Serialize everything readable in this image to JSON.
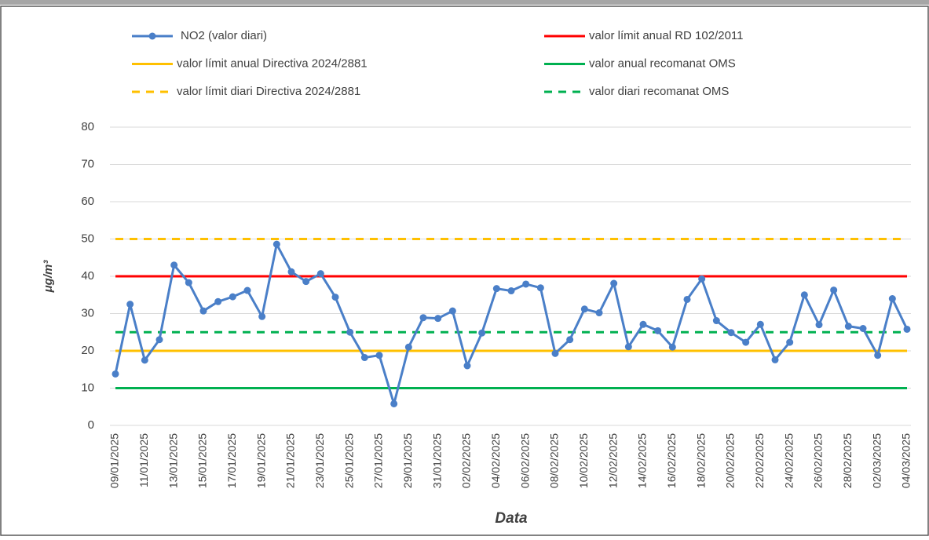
{
  "chart_data": {
    "type": "line",
    "y_label": "μg/m³",
    "x_label": "Data",
    "categories": [
      "09/01/2025",
      null,
      "11/01/2025",
      null,
      "13/01/2025",
      null,
      "15/01/2025",
      null,
      "17/01/2025",
      null,
      "19/01/2025",
      null,
      "21/01/2025",
      null,
      "23/01/2025",
      null,
      "25/01/2025",
      null,
      "27/01/2025",
      null,
      "29/01/2025",
      null,
      "31/01/2025",
      null,
      "02/02/2025",
      null,
      "04/02/2025",
      null,
      "06/02/2025",
      null,
      "08/02/2025",
      null,
      "10/02/2025",
      null,
      "12/02/2025",
      null,
      "14/02/2025",
      null,
      "16/02/2025",
      null,
      "18/02/2025",
      null,
      "20/02/2025",
      null,
      "22/02/2025",
      null,
      "24/02/2025",
      null,
      "26/02/2025",
      null,
      "28/02/2025",
      null,
      "02/03/2025",
      null,
      "04/03/2025"
    ],
    "series": [
      {
        "name": "NO2 (valor diari)",
        "color": "#4a7fc8",
        "values": [
          13.8,
          32.5,
          17.5,
          23,
          43,
          38.3,
          30.7,
          33.2,
          34.5,
          36.2,
          29.2,
          48.6,
          41.2,
          38.6,
          40.7,
          34.4,
          25,
          18.2,
          18.8,
          5.8,
          21,
          28.9,
          28.7,
          30.7,
          16,
          24.8,
          36.7,
          36.1,
          37.9,
          36.9,
          19.3,
          23,
          31.2,
          30.2,
          38.1,
          21.1,
          27.1,
          25.4,
          21,
          33.8,
          39.3,
          28.1,
          24.9,
          22.3,
          27.1,
          17.6,
          22.3,
          35,
          27,
          36.3,
          26.6,
          26,
          18.8,
          34,
          25.8
        ]
      }
    ],
    "reference_lines": [
      {
        "name": "valor límit anual RD 102/2011",
        "value": 40,
        "color": "#ff0000",
        "dashed": false
      },
      {
        "name": "valor límit anual Directiva 2024/2881",
        "value": 20,
        "color": "#ffc000",
        "dashed": false
      },
      {
        "name": "valor anual recomanat OMS",
        "value": 10,
        "color": "#00b050",
        "dashed": false
      },
      {
        "name": "valor límit diari Directiva 2024/2881",
        "value": 50,
        "color": "#ffc000",
        "dashed": true
      },
      {
        "name": "valor diari recomanat OMS",
        "value": 25,
        "color": "#00b050",
        "dashed": true
      }
    ],
    "ylim": [
      0,
      80
    ],
    "yticks": [
      0,
      10,
      20,
      30,
      40,
      50,
      60,
      70,
      80
    ],
    "grid": true
  }
}
